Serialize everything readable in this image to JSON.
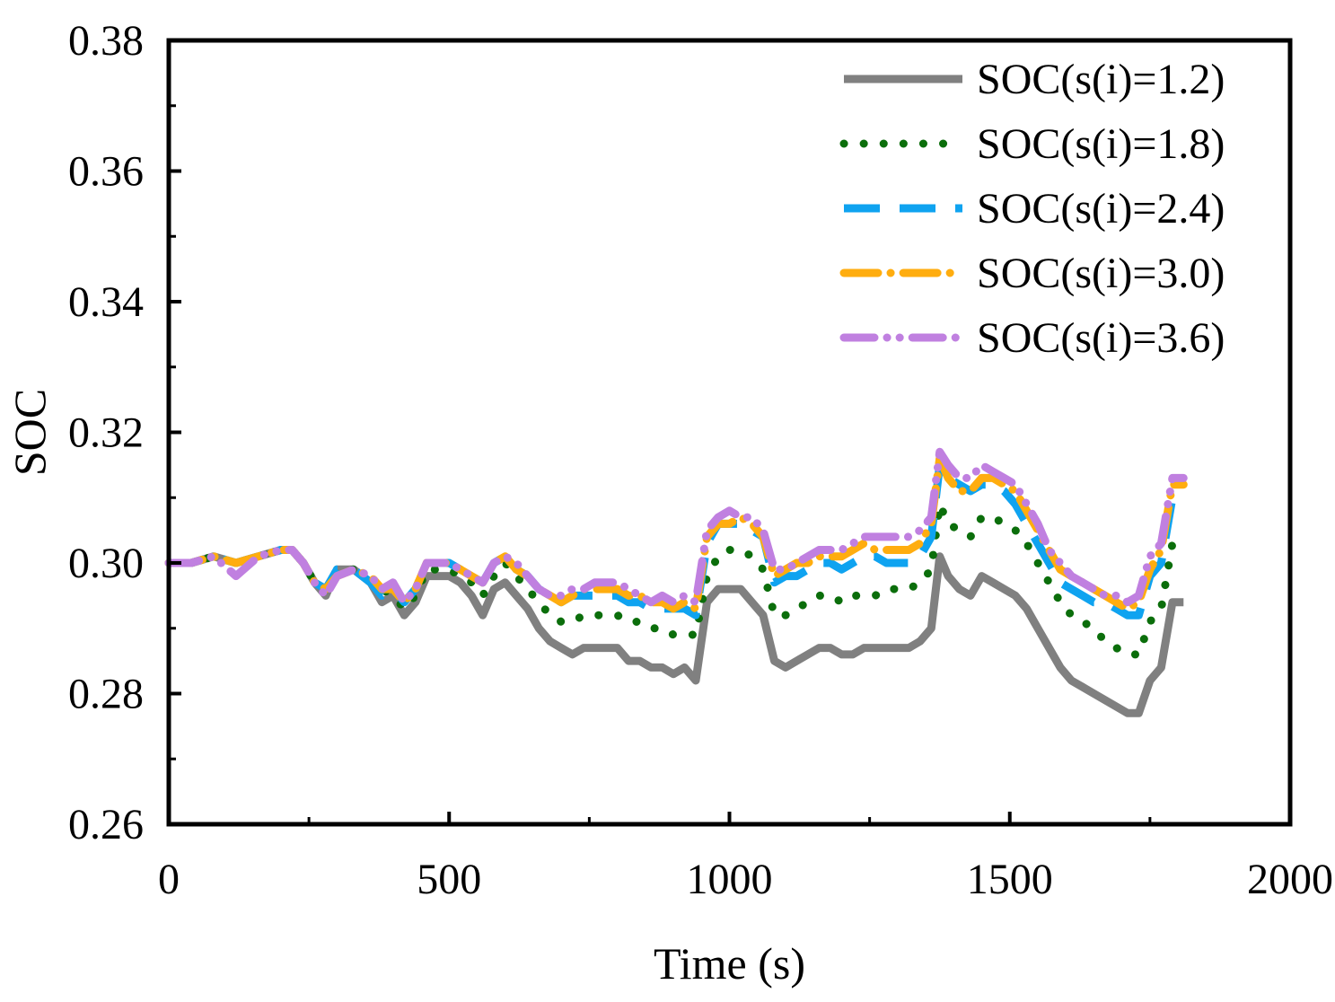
{
  "chart_data": {
    "type": "line",
    "title": "",
    "xlabel": "Time (s)",
    "ylabel": "SOC",
    "xlim": [
      0,
      2000
    ],
    "ylim": [
      0.26,
      0.38
    ],
    "x_ticks": [
      0,
      500,
      1000,
      1500,
      2000
    ],
    "x_tick_labels": [
      "0",
      "500",
      "1000",
      "1500",
      "2000"
    ],
    "y_ticks": [
      0.26,
      0.28,
      0.3,
      0.32,
      0.34,
      0.36,
      0.38
    ],
    "y_tick_labels": [
      "0.26",
      "0.28",
      "0.30",
      "0.32",
      "0.34",
      "0.36",
      "0.38"
    ],
    "grid": false,
    "legend_position": "top-right",
    "series": [
      {
        "name": "SOC(s(i)=1.2)",
        "color": "#808080",
        "style": "solid",
        "x": [
          0,
          40,
          80,
          120,
          160,
          200,
          220,
          240,
          260,
          280,
          300,
          330,
          360,
          380,
          400,
          420,
          440,
          460,
          480,
          500,
          520,
          540,
          560,
          580,
          600,
          620,
          640,
          660,
          680,
          700,
          720,
          740,
          760,
          780,
          800,
          820,
          840,
          860,
          880,
          900,
          920,
          940,
          960,
          980,
          1000,
          1020,
          1040,
          1060,
          1080,
          1100,
          1120,
          1140,
          1160,
          1180,
          1200,
          1220,
          1240,
          1260,
          1280,
          1300,
          1320,
          1340,
          1360,
          1375,
          1390,
          1410,
          1430,
          1450,
          1470,
          1490,
          1510,
          1530,
          1550,
          1570,
          1590,
          1610,
          1630,
          1650,
          1670,
          1690,
          1710,
          1730,
          1750,
          1770,
          1790,
          1810
        ],
        "y": [
          0.3,
          0.3,
          0.301,
          0.3,
          0.301,
          0.302,
          0.302,
          0.3,
          0.297,
          0.295,
          0.299,
          0.299,
          0.297,
          0.294,
          0.295,
          0.292,
          0.294,
          0.298,
          0.298,
          0.298,
          0.297,
          0.295,
          0.292,
          0.296,
          0.297,
          0.295,
          0.293,
          0.29,
          0.288,
          0.287,
          0.286,
          0.287,
          0.287,
          0.287,
          0.287,
          0.285,
          0.285,
          0.284,
          0.284,
          0.283,
          0.284,
          0.282,
          0.294,
          0.296,
          0.296,
          0.296,
          0.294,
          0.292,
          0.285,
          0.284,
          0.285,
          0.286,
          0.287,
          0.287,
          0.286,
          0.286,
          0.287,
          0.287,
          0.287,
          0.287,
          0.287,
          0.288,
          0.29,
          0.301,
          0.298,
          0.296,
          0.295,
          0.298,
          0.297,
          0.296,
          0.295,
          0.293,
          0.29,
          0.287,
          0.284,
          0.282,
          0.281,
          0.28,
          0.279,
          0.278,
          0.277,
          0.277,
          0.282,
          0.284,
          0.294,
          0.294
        ]
      },
      {
        "name": "SOC(s(i)=1.8)",
        "color": "#0b6e0b",
        "style": "dotted",
        "x": [
          0,
          40,
          80,
          120,
          160,
          200,
          220,
          240,
          260,
          280,
          300,
          330,
          360,
          380,
          400,
          420,
          440,
          460,
          480,
          500,
          520,
          540,
          560,
          580,
          600,
          620,
          640,
          660,
          680,
          700,
          720,
          740,
          760,
          780,
          800,
          820,
          840,
          860,
          880,
          900,
          920,
          940,
          960,
          980,
          1000,
          1020,
          1040,
          1060,
          1080,
          1100,
          1120,
          1140,
          1160,
          1180,
          1200,
          1220,
          1240,
          1260,
          1280,
          1300,
          1320,
          1340,
          1360,
          1375,
          1390,
          1410,
          1430,
          1450,
          1470,
          1490,
          1510,
          1530,
          1550,
          1570,
          1590,
          1610,
          1630,
          1650,
          1670,
          1690,
          1710,
          1730,
          1750,
          1770,
          1790,
          1810
        ],
        "y": [
          0.3,
          0.3,
          0.301,
          0.3,
          0.301,
          0.302,
          0.302,
          0.3,
          0.297,
          0.296,
          0.299,
          0.299,
          0.297,
          0.296,
          0.295,
          0.293,
          0.295,
          0.299,
          0.299,
          0.299,
          0.298,
          0.297,
          0.295,
          0.298,
          0.3,
          0.298,
          0.296,
          0.294,
          0.292,
          0.291,
          0.291,
          0.292,
          0.292,
          0.292,
          0.292,
          0.291,
          0.291,
          0.29,
          0.29,
          0.289,
          0.289,
          0.289,
          0.298,
          0.301,
          0.302,
          0.302,
          0.301,
          0.299,
          0.292,
          0.292,
          0.293,
          0.294,
          0.295,
          0.295,
          0.294,
          0.295,
          0.295,
          0.295,
          0.296,
          0.296,
          0.296,
          0.297,
          0.299,
          0.309,
          0.306,
          0.305,
          0.304,
          0.307,
          0.307,
          0.306,
          0.305,
          0.303,
          0.3,
          0.297,
          0.294,
          0.292,
          0.291,
          0.29,
          0.288,
          0.287,
          0.286,
          0.286,
          0.291,
          0.293,
          0.303,
          0.303
        ]
      },
      {
        "name": "SOC(s(i)=2.4)",
        "color": "#0fa3f0",
        "style": "dashed",
        "x": [
          0,
          40,
          80,
          120,
          160,
          200,
          220,
          240,
          260,
          280,
          300,
          330,
          360,
          380,
          400,
          420,
          440,
          460,
          480,
          500,
          520,
          540,
          560,
          580,
          600,
          620,
          640,
          660,
          680,
          700,
          720,
          740,
          760,
          780,
          800,
          820,
          840,
          860,
          880,
          900,
          920,
          940,
          960,
          980,
          1000,
          1020,
          1040,
          1060,
          1080,
          1100,
          1120,
          1140,
          1160,
          1180,
          1200,
          1220,
          1240,
          1260,
          1280,
          1300,
          1320,
          1340,
          1360,
          1375,
          1390,
          1410,
          1430,
          1450,
          1470,
          1490,
          1510,
          1530,
          1550,
          1570,
          1590,
          1610,
          1630,
          1650,
          1670,
          1690,
          1710,
          1730,
          1750,
          1770,
          1790,
          1810
        ],
        "y": [
          0.3,
          0.3,
          0.301,
          0.3,
          0.301,
          0.302,
          0.302,
          0.3,
          0.297,
          0.296,
          0.299,
          0.299,
          0.297,
          0.295,
          0.296,
          0.294,
          0.296,
          0.3,
          0.3,
          0.3,
          0.299,
          0.298,
          0.297,
          0.3,
          0.301,
          0.299,
          0.298,
          0.296,
          0.295,
          0.294,
          0.295,
          0.295,
          0.295,
          0.295,
          0.295,
          0.294,
          0.294,
          0.293,
          0.293,
          0.293,
          0.293,
          0.292,
          0.303,
          0.306,
          0.306,
          0.306,
          0.305,
          0.304,
          0.297,
          0.298,
          0.298,
          0.299,
          0.3,
          0.3,
          0.299,
          0.3,
          0.301,
          0.301,
          0.3,
          0.3,
          0.3,
          0.301,
          0.304,
          0.315,
          0.313,
          0.312,
          0.311,
          0.312,
          0.312,
          0.311,
          0.309,
          0.306,
          0.303,
          0.3,
          0.297,
          0.296,
          0.295,
          0.294,
          0.294,
          0.293,
          0.292,
          0.292,
          0.298,
          0.3,
          0.31,
          0.31
        ]
      },
      {
        "name": "SOC(s(i)=3.0)",
        "color": "#ffad0f",
        "style": "dash-dot",
        "x": [
          0,
          40,
          80,
          120,
          160,
          200,
          220,
          240,
          260,
          280,
          300,
          330,
          360,
          380,
          400,
          420,
          440,
          460,
          480,
          500,
          520,
          540,
          560,
          580,
          600,
          620,
          640,
          660,
          680,
          700,
          720,
          740,
          760,
          780,
          800,
          820,
          840,
          860,
          880,
          900,
          920,
          940,
          960,
          980,
          1000,
          1020,
          1040,
          1060,
          1080,
          1100,
          1120,
          1140,
          1160,
          1180,
          1200,
          1220,
          1240,
          1260,
          1280,
          1300,
          1320,
          1340,
          1360,
          1375,
          1390,
          1410,
          1430,
          1450,
          1470,
          1490,
          1510,
          1530,
          1550,
          1570,
          1590,
          1610,
          1630,
          1650,
          1670,
          1690,
          1710,
          1730,
          1750,
          1770,
          1790,
          1810
        ],
        "y": [
          0.3,
          0.3,
          0.301,
          0.3,
          0.301,
          0.302,
          0.302,
          0.3,
          0.297,
          0.296,
          0.298,
          0.299,
          0.298,
          0.296,
          0.296,
          0.294,
          0.296,
          0.3,
          0.3,
          0.3,
          0.299,
          0.298,
          0.297,
          0.3,
          0.301,
          0.299,
          0.298,
          0.296,
          0.295,
          0.294,
          0.295,
          0.296,
          0.296,
          0.296,
          0.296,
          0.295,
          0.295,
          0.294,
          0.294,
          0.293,
          0.294,
          0.293,
          0.304,
          0.306,
          0.306,
          0.307,
          0.306,
          0.304,
          0.298,
          0.299,
          0.3,
          0.3,
          0.301,
          0.301,
          0.301,
          0.302,
          0.303,
          0.302,
          0.302,
          0.302,
          0.302,
          0.303,
          0.306,
          0.316,
          0.313,
          0.311,
          0.311,
          0.313,
          0.313,
          0.312,
          0.311,
          0.308,
          0.305,
          0.302,
          0.299,
          0.298,
          0.297,
          0.296,
          0.295,
          0.294,
          0.293,
          0.294,
          0.299,
          0.302,
          0.312,
          0.312
        ]
      },
      {
        "name": "SOC(s(i)=3.6)",
        "color": "#c080e0",
        "style": "dash-dot-dot",
        "x": [
          0,
          40,
          80,
          120,
          160,
          200,
          220,
          240,
          260,
          280,
          300,
          330,
          360,
          380,
          400,
          420,
          440,
          460,
          480,
          500,
          520,
          540,
          560,
          580,
          600,
          620,
          640,
          660,
          680,
          700,
          720,
          740,
          760,
          780,
          800,
          820,
          840,
          860,
          880,
          900,
          920,
          940,
          960,
          980,
          1000,
          1020,
          1040,
          1060,
          1080,
          1100,
          1120,
          1140,
          1160,
          1180,
          1200,
          1220,
          1240,
          1260,
          1280,
          1300,
          1320,
          1340,
          1360,
          1375,
          1390,
          1410,
          1430,
          1450,
          1470,
          1490,
          1510,
          1530,
          1550,
          1570,
          1590,
          1610,
          1630,
          1650,
          1670,
          1690,
          1710,
          1730,
          1750,
          1770,
          1790,
          1810
        ],
        "y": [
          0.3,
          0.3,
          0.301,
          0.298,
          0.301,
          0.302,
          0.302,
          0.3,
          0.297,
          0.295,
          0.298,
          0.299,
          0.298,
          0.296,
          0.297,
          0.294,
          0.296,
          0.3,
          0.3,
          0.3,
          0.299,
          0.298,
          0.297,
          0.3,
          0.301,
          0.3,
          0.298,
          0.296,
          0.295,
          0.295,
          0.296,
          0.296,
          0.297,
          0.297,
          0.297,
          0.296,
          0.295,
          0.294,
          0.295,
          0.294,
          0.295,
          0.294,
          0.305,
          0.307,
          0.308,
          0.307,
          0.307,
          0.305,
          0.299,
          0.299,
          0.3,
          0.301,
          0.302,
          0.302,
          0.302,
          0.303,
          0.304,
          0.304,
          0.304,
          0.304,
          0.304,
          0.305,
          0.307,
          0.317,
          0.315,
          0.313,
          0.313,
          0.315,
          0.314,
          0.313,
          0.312,
          0.309,
          0.306,
          0.302,
          0.3,
          0.298,
          0.297,
          0.296,
          0.295,
          0.295,
          0.294,
          0.295,
          0.301,
          0.303,
          0.313,
          0.313
        ]
      }
    ]
  }
}
